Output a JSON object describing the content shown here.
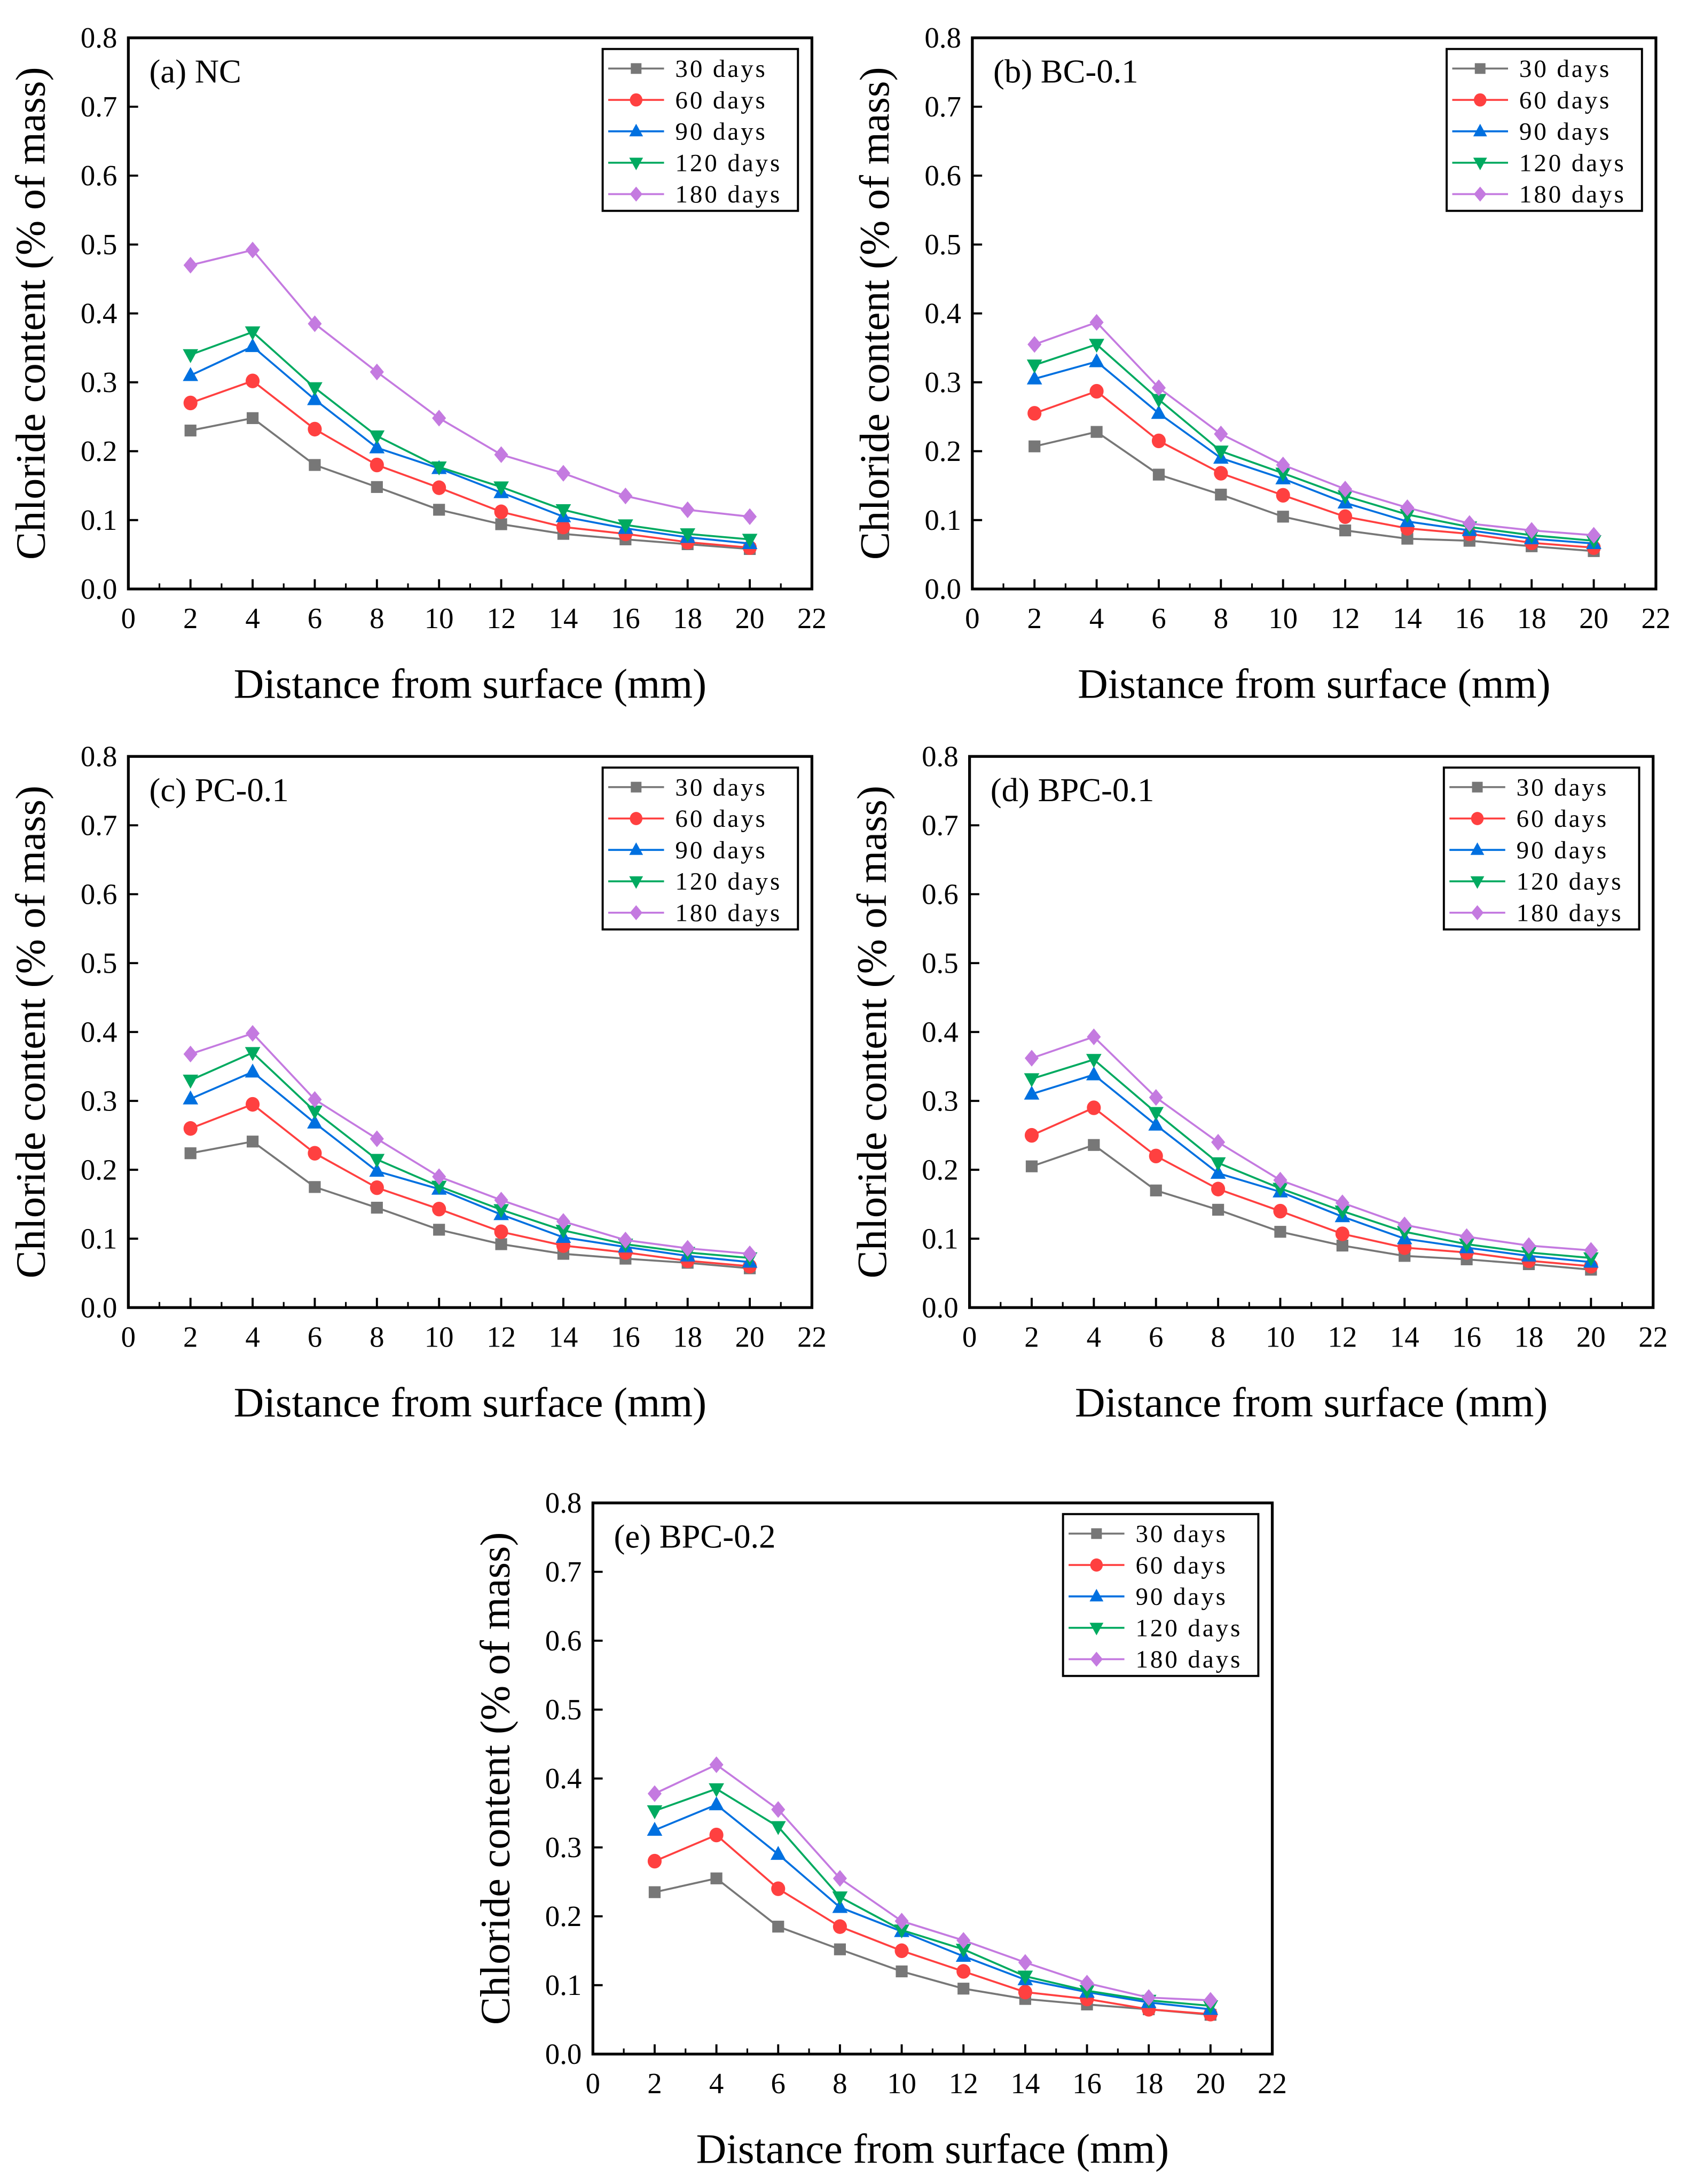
{
  "chart_data": {
    "type": "line",
    "shared": {
      "xlabel": "Distance from surface (mm)",
      "ylabel": "Chloride content (% of mass)",
      "xlim": [
        0,
        22
      ],
      "ylim": [
        0,
        0.8
      ],
      "xticks": [
        0,
        2,
        4,
        6,
        8,
        10,
        12,
        14,
        16,
        18,
        20,
        22
      ],
      "yticks": [
        "0.0",
        "0.1",
        "0.2",
        "0.3",
        "0.4",
        "0.5",
        "0.6",
        "0.7",
        "0.8"
      ],
      "x": [
        2,
        4,
        6,
        8,
        10,
        12,
        14,
        16,
        18,
        20
      ],
      "legend_placement": "top-right",
      "series_style": [
        {
          "name": "30 days",
          "color": "#777777",
          "marker": "square"
        },
        {
          "name": "60 days",
          "color": "#ff4040",
          "marker": "circle"
        },
        {
          "name": "90 days",
          "color": "#0070e0",
          "marker": "triangle-up"
        },
        {
          "name": "120 days",
          "color": "#00aa60",
          "marker": "triangle-down"
        },
        {
          "name": "180 days",
          "color": "#c47ae0",
          "marker": "diamond"
        }
      ]
    },
    "panels": [
      {
        "title": "(a) NC",
        "series": [
          {
            "name": "30 days",
            "values": [
              0.23,
              0.248,
              0.18,
              0.148,
              0.115,
              0.094,
              0.08,
              0.072,
              0.065,
              0.058
            ]
          },
          {
            "name": "60 days",
            "values": [
              0.27,
              0.302,
              0.232,
              0.18,
              0.147,
              0.112,
              0.09,
              0.08,
              0.068,
              0.06
            ]
          },
          {
            "name": "90 days",
            "values": [
              0.31,
              0.352,
              0.275,
              0.205,
              0.175,
              0.14,
              0.105,
              0.088,
              0.075,
              0.066
            ]
          },
          {
            "name": "120 days",
            "values": [
              0.34,
              0.373,
              0.292,
              0.222,
              0.177,
              0.148,
              0.115,
              0.093,
              0.08,
              0.072
            ]
          },
          {
            "name": "180 days",
            "values": [
              0.47,
              0.492,
              0.385,
              0.315,
              0.248,
              0.195,
              0.168,
              0.135,
              0.115,
              0.105
            ]
          }
        ]
      },
      {
        "title": "(b) BC-0.1",
        "series": [
          {
            "name": "30 days",
            "values": [
              0.207,
              0.228,
              0.166,
              0.137,
              0.105,
              0.085,
              0.073,
              0.07,
              0.062,
              0.055
            ]
          },
          {
            "name": "60 days",
            "values": [
              0.255,
              0.287,
              0.215,
              0.168,
              0.136,
              0.105,
              0.088,
              0.08,
              0.067,
              0.06
            ]
          },
          {
            "name": "90 days",
            "values": [
              0.305,
              0.33,
              0.255,
              0.19,
              0.16,
              0.125,
              0.098,
              0.085,
              0.073,
              0.066
            ]
          },
          {
            "name": "120 days",
            "values": [
              0.325,
              0.355,
              0.275,
              0.2,
              0.168,
              0.135,
              0.108,
              0.09,
              0.078,
              0.07
            ]
          },
          {
            "name": "180 days",
            "values": [
              0.355,
              0.387,
              0.292,
              0.225,
              0.18,
              0.145,
              0.118,
              0.095,
              0.085,
              0.078
            ]
          }
        ]
      },
      {
        "title": "(c) PC-0.1",
        "series": [
          {
            "name": "30 days",
            "values": [
              0.224,
              0.241,
              0.175,
              0.145,
              0.113,
              0.092,
              0.078,
              0.071,
              0.065,
              0.057
            ]
          },
          {
            "name": "60 days",
            "values": [
              0.26,
              0.295,
              0.224,
              0.174,
              0.143,
              0.11,
              0.09,
              0.08,
              0.068,
              0.06
            ]
          },
          {
            "name": "90 days",
            "values": [
              0.303,
              0.342,
              0.268,
              0.198,
              0.172,
              0.135,
              0.102,
              0.088,
              0.075,
              0.066
            ]
          },
          {
            "name": "120 days",
            "values": [
              0.33,
              0.37,
              0.285,
              0.215,
              0.176,
              0.142,
              0.112,
              0.092,
              0.08,
              0.072
            ]
          },
          {
            "name": "180 days",
            "values": [
              0.368,
              0.398,
              0.302,
              0.245,
              0.19,
              0.156,
              0.125,
              0.098,
              0.086,
              0.078
            ]
          }
        ]
      },
      {
        "title": "(d) BPC-0.1",
        "series": [
          {
            "name": "30 days",
            "values": [
              0.205,
              0.236,
              0.17,
              0.142,
              0.11,
              0.09,
              0.075,
              0.07,
              0.063,
              0.055
            ]
          },
          {
            "name": "60 days",
            "values": [
              0.25,
              0.29,
              0.22,
              0.172,
              0.14,
              0.107,
              0.087,
              0.08,
              0.068,
              0.06
            ]
          },
          {
            "name": "90 days",
            "values": [
              0.31,
              0.338,
              0.265,
              0.195,
              0.168,
              0.132,
              0.1,
              0.087,
              0.075,
              0.066
            ]
          },
          {
            "name": "120 days",
            "values": [
              0.332,
              0.36,
              0.283,
              0.21,
              0.173,
              0.14,
              0.11,
              0.092,
              0.08,
              0.072
            ]
          },
          {
            "name": "180 days",
            "values": [
              0.362,
              0.393,
              0.305,
              0.24,
              0.185,
              0.152,
              0.12,
              0.103,
              0.09,
              0.083
            ]
          }
        ]
      },
      {
        "title": "(e) BPC-0.2",
        "series": [
          {
            "name": "30 days",
            "values": [
              0.235,
              0.255,
              0.185,
              0.152,
              0.12,
              0.095,
              0.08,
              0.072,
              0.065,
              0.057
            ]
          },
          {
            "name": "60 days",
            "values": [
              0.28,
              0.318,
              0.24,
              0.185,
              0.15,
              0.12,
              0.09,
              0.08,
              0.065,
              0.058
            ]
          },
          {
            "name": "90 days",
            "values": [
              0.325,
              0.362,
              0.29,
              0.213,
              0.178,
              0.142,
              0.108,
              0.09,
              0.075,
              0.065
            ]
          },
          {
            "name": "120 days",
            "values": [
              0.353,
              0.385,
              0.33,
              0.228,
              0.18,
              0.152,
              0.113,
              0.092,
              0.078,
              0.07
            ]
          },
          {
            "name": "180 days",
            "values": [
              0.378,
              0.42,
              0.355,
              0.255,
              0.193,
              0.165,
              0.133,
              0.103,
              0.082,
              0.078
            ]
          }
        ]
      }
    ]
  }
}
